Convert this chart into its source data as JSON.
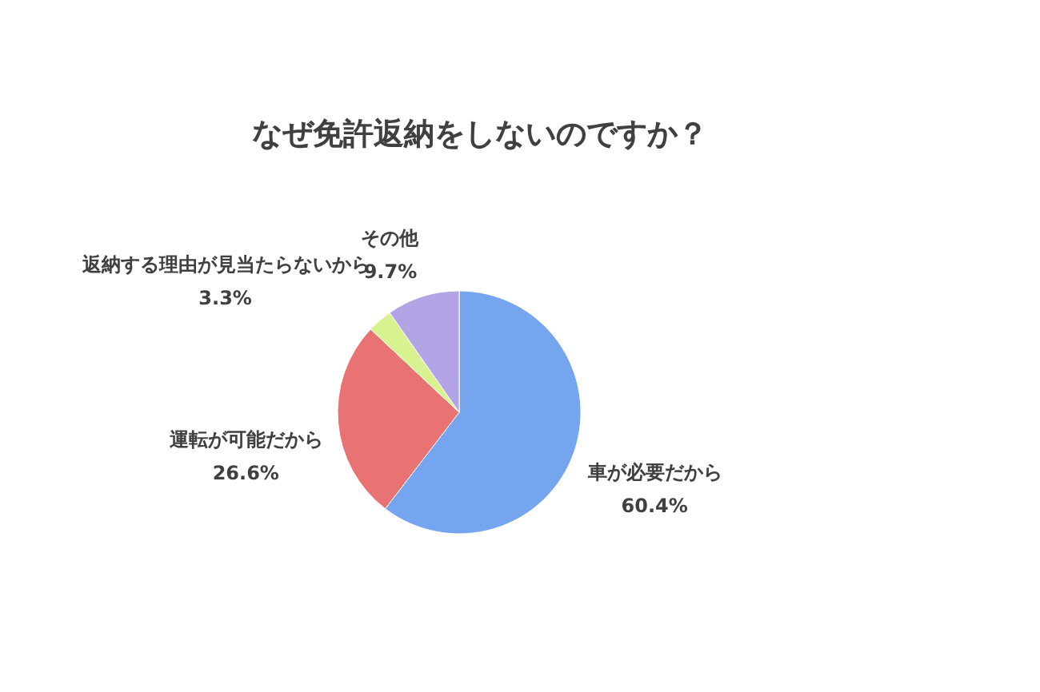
{
  "chart_data": {
    "type": "pie",
    "title": "なぜ免許返納をしないのですか？",
    "categories": [
      "車が必要だから",
      "運転が可能だから",
      "返納する理由が見当たらないから",
      "その他"
    ],
    "values": [
      60.4,
      26.6,
      3.3,
      9.7
    ],
    "value_labels": [
      "60.4%",
      "26.6%",
      "3.3%",
      "9.7%"
    ],
    "colors": [
      "#76a5ef",
      "#e97272",
      "#d7f28f",
      "#b3a4e6"
    ],
    "legend": false
  }
}
